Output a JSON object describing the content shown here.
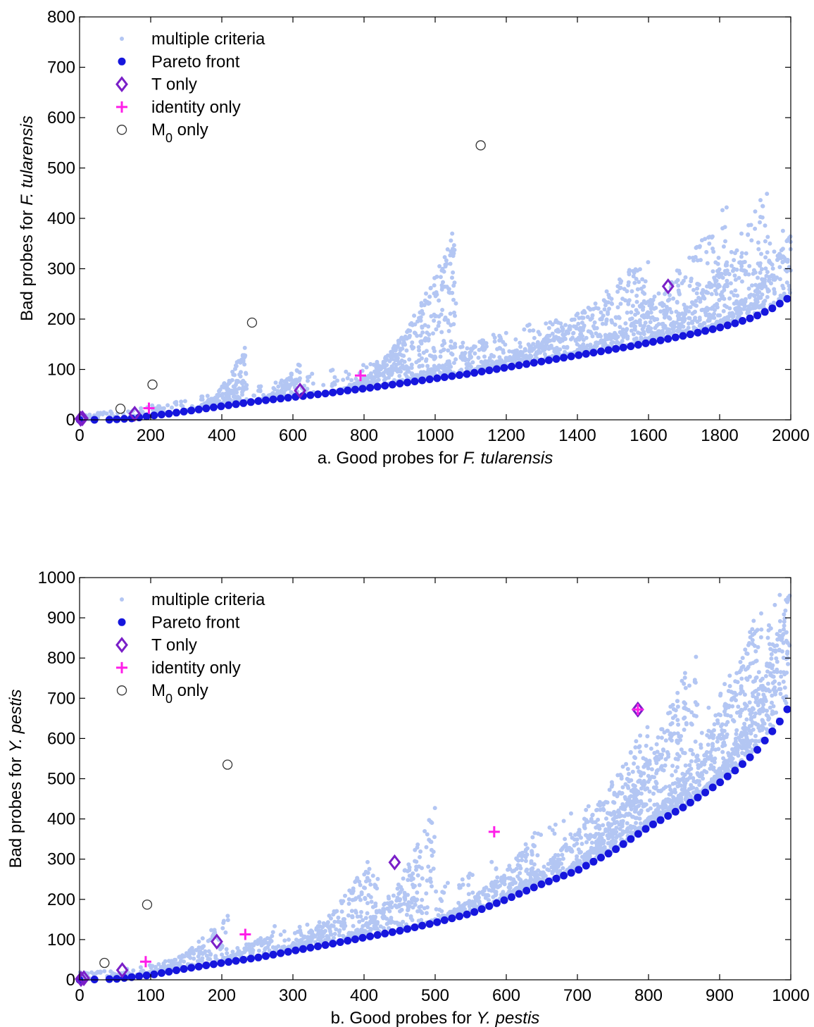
{
  "colors": {
    "cloud": "#b3c6f3",
    "pareto": "#1616dd",
    "t_only": "#7a1fc8",
    "identity_only": "#ff1ee8",
    "m0_only": "#333333"
  },
  "chart_data": [
    {
      "type": "scatter",
      "xlabel_prefix": "a. Good probes for ",
      "xlabel_italic": "F. tularensis",
      "ylabel_prefix": "Bad probes for ",
      "ylabel_italic": "F. tularensis",
      "xlim": [
        0,
        2000
      ],
      "ylim": [
        0,
        800
      ],
      "xticks": [
        0,
        200,
        400,
        600,
        800,
        1000,
        1200,
        1400,
        1600,
        1800,
        2000
      ],
      "yticks": [
        0,
        100,
        200,
        300,
        400,
        500,
        600,
        700,
        800
      ],
      "legend_position": "top-left",
      "legend": [
        {
          "key": "multiple_criteria",
          "label": "multiple criteria",
          "marker": "dot-small"
        },
        {
          "key": "pareto_front",
          "label": "Pareto front",
          "marker": "dot"
        },
        {
          "key": "t_only",
          "label": "T only",
          "marker": "diamond"
        },
        {
          "key": "identity_only",
          "label": "identity only",
          "marker": "plus"
        },
        {
          "key": "m0_only",
          "label": "M",
          "label_sub": "0",
          "label_suffix": " only",
          "marker": "circle"
        }
      ],
      "series": [
        {
          "key": "m0_only",
          "marker": "circle",
          "x": [
            115,
            205,
            485,
            1128
          ],
          "y": [
            22,
            70,
            193,
            545
          ]
        },
        {
          "key": "t_only",
          "marker": "diamond",
          "x": [
            3,
            8,
            155,
            620,
            1655
          ],
          "y": [
            2,
            3,
            12,
            58,
            265
          ]
        },
        {
          "key": "identity_only",
          "marker": "plus",
          "x": [
            195,
            790
          ],
          "y": [
            23,
            88
          ]
        }
      ],
      "pareto_front": {
        "x": [
          0,
          80,
          150,
          200,
          250,
          300,
          350,
          400,
          450,
          500,
          550,
          600,
          650,
          700,
          750,
          800,
          850,
          900,
          950,
          1000,
          1050,
          1100,
          1150,
          1200,
          1250,
          1300,
          1350,
          1400,
          1450,
          1500,
          1550,
          1600,
          1650,
          1700,
          1750,
          1800,
          1850,
          1900,
          1950,
          2000
        ],
        "y": [
          0,
          0,
          3,
          8,
          12,
          17,
          22,
          27,
          32,
          37,
          41,
          45,
          49,
          53,
          58,
          62,
          67,
          72,
          77,
          82,
          87,
          92,
          98,
          104,
          110,
          116,
          122,
          128,
          134,
          140,
          146,
          153,
          160,
          167,
          175,
          183,
          193,
          205,
          222,
          245
        ]
      },
      "clouds": [
        {
          "kind": "band",
          "x0": 0,
          "x1": 2000,
          "n": 520,
          "top_add": 0.35,
          "top_mul": 1.2
        },
        {
          "kind": "spike",
          "x0": 300,
          "x1": 470,
          "n": 180,
          "top": 150
        },
        {
          "kind": "spike",
          "x0": 480,
          "x1": 620,
          "n": 120,
          "top": 115
        },
        {
          "kind": "spike",
          "x0": 700,
          "x1": 1060,
          "n": 420,
          "top": 380
        },
        {
          "kind": "spike",
          "x0": 800,
          "x1": 1150,
          "n": 160,
          "top": 165
        },
        {
          "kind": "spike",
          "x0": 1000,
          "x1": 1600,
          "n": 420,
          "top": 330
        },
        {
          "kind": "spike",
          "x0": 1300,
          "x1": 1820,
          "n": 300,
          "top": 430
        },
        {
          "kind": "spike",
          "x0": 1500,
          "x1": 1940,
          "n": 300,
          "top": 470
        },
        {
          "kind": "spike",
          "x0": 1700,
          "x1": 2000,
          "n": 260,
          "top": 370
        }
      ]
    },
    {
      "type": "scatter",
      "xlabel_prefix": "b. Good probes for ",
      "xlabel_italic": "Y. pestis",
      "ylabel_prefix": "Bad probes for ",
      "ylabel_italic": "Y. pestis",
      "xlim": [
        0,
        1000
      ],
      "ylim": [
        0,
        1000
      ],
      "xticks": [
        0,
        100,
        200,
        300,
        400,
        500,
        600,
        700,
        800,
        900,
        1000
      ],
      "yticks": [
        0,
        100,
        200,
        300,
        400,
        500,
        600,
        700,
        800,
        900,
        1000
      ],
      "legend_position": "top-left",
      "legend": [
        {
          "key": "multiple_criteria",
          "label": "multiple criteria",
          "marker": "dot-small"
        },
        {
          "key": "pareto_front",
          "label": "Pareto front",
          "marker": "dot"
        },
        {
          "key": "t_only",
          "label": "T only",
          "marker": "diamond"
        },
        {
          "key": "identity_only",
          "label": "identity only",
          "marker": "plus"
        },
        {
          "key": "m0_only",
          "label": "M",
          "label_sub": "0",
          "label_suffix": " only",
          "marker": "circle"
        }
      ],
      "series": [
        {
          "key": "m0_only",
          "marker": "circle",
          "x": [
            35,
            95,
            208
          ],
          "y": [
            42,
            187,
            535
          ]
        },
        {
          "key": "t_only",
          "marker": "diamond",
          "x": [
            2,
            6,
            60,
            193,
            443,
            785
          ],
          "y": [
            2,
            4,
            24,
            95,
            292,
            672
          ]
        },
        {
          "key": "identity_only",
          "marker": "plus",
          "x": [
            93,
            233,
            583,
            785
          ],
          "y": [
            45,
            113,
            368,
            672
          ]
        }
      ],
      "pareto_front": {
        "x": [
          0,
          50,
          100,
          150,
          200,
          250,
          300,
          350,
          400,
          450,
          500,
          550,
          600,
          650,
          700,
          750,
          800,
          850,
          900,
          925,
          950,
          975,
          990,
          1000
        ],
        "y": [
          0,
          2,
          12,
          28,
          42,
          55,
          72,
          88,
          105,
          122,
          142,
          165,
          200,
          238,
          272,
          320,
          380,
          430,
          490,
          525,
          565,
          620,
          655,
          690
        ]
      },
      "clouds": [
        {
          "kind": "band",
          "x0": 0,
          "x1": 1000,
          "n": 480,
          "top_add": 0.25,
          "top_mul": 1.25
        },
        {
          "kind": "spike",
          "x0": 60,
          "x1": 210,
          "n": 150,
          "top": 165
        },
        {
          "kind": "spike",
          "x0": 150,
          "x1": 280,
          "n": 90,
          "top": 140
        },
        {
          "kind": "spike",
          "x0": 250,
          "x1": 420,
          "n": 240,
          "top": 330
        },
        {
          "kind": "spike",
          "x0": 350,
          "x1": 500,
          "n": 220,
          "top": 430
        },
        {
          "kind": "spike",
          "x0": 450,
          "x1": 640,
          "n": 260,
          "top": 350
        },
        {
          "kind": "spike",
          "x0": 550,
          "x1": 800,
          "n": 380,
          "top": 640
        },
        {
          "kind": "spike",
          "x0": 650,
          "x1": 870,
          "n": 420,
          "top": 840
        },
        {
          "kind": "spike",
          "x0": 750,
          "x1": 960,
          "n": 420,
          "top": 950
        },
        {
          "kind": "spike",
          "x0": 850,
          "x1": 1000,
          "n": 380,
          "top": 990
        }
      ]
    }
  ]
}
